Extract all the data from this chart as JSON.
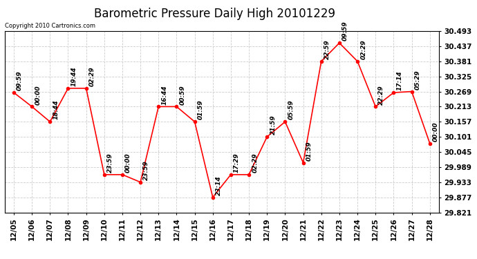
{
  "title": "Barometric Pressure Daily High 20101229",
  "copyright": "Copyright 2010 Cartronics.com",
  "x_labels": [
    "12/05",
    "12/06",
    "12/07",
    "12/08",
    "12/09",
    "12/10",
    "12/11",
    "12/12",
    "12/13",
    "12/14",
    "12/15",
    "12/16",
    "12/17",
    "12/18",
    "12/19",
    "12/20",
    "12/21",
    "12/22",
    "12/23",
    "12/24",
    "12/25",
    "12/26",
    "12/27",
    "12/28"
  ],
  "y_values": [
    30.265,
    30.213,
    30.157,
    30.281,
    30.281,
    29.961,
    29.961,
    29.933,
    30.213,
    30.213,
    30.157,
    29.877,
    29.961,
    29.961,
    30.101,
    30.157,
    30.005,
    30.381,
    30.449,
    30.381,
    30.213,
    30.265,
    30.269,
    30.077
  ],
  "time_labels": [
    "09:59",
    "00:00",
    "18:44",
    "19:44",
    "02:29",
    "23:59",
    "00:00",
    "23:59",
    "16:44",
    "00:59",
    "01:59",
    "23:14",
    "17:29",
    "02:29",
    "21:59",
    "05:59",
    "01:59",
    "22:59",
    "09:59",
    "02:29",
    "22:29",
    "17:14",
    "05:29",
    "00:00"
  ],
  "ylim_min": 29.821,
  "ylim_max": 30.493,
  "yticks": [
    29.821,
    29.877,
    29.933,
    29.989,
    30.045,
    30.101,
    30.157,
    30.213,
    30.269,
    30.325,
    30.381,
    30.437,
    30.493
  ],
  "line_color": "red",
  "marker_color": "red",
  "marker_size": 3,
  "grid_color": "#cccccc",
  "bg_color": "white",
  "title_fontsize": 12,
  "tick_fontsize": 7.5,
  "time_label_fontsize": 6.5
}
